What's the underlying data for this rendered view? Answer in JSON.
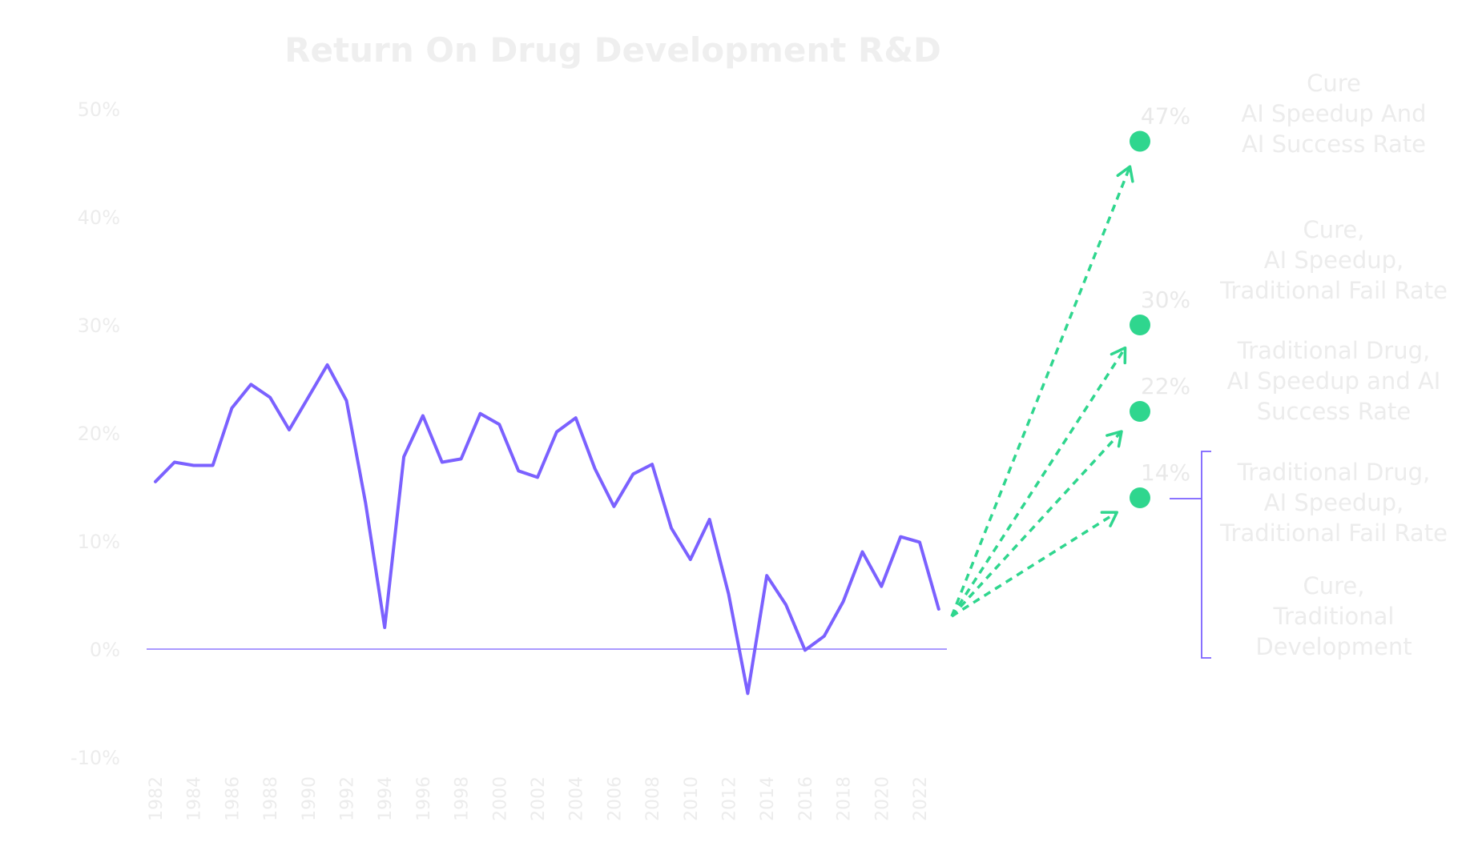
{
  "chart_data": {
    "type": "line",
    "title": "Return On Drug Development R&D",
    "xlabel": "",
    "ylabel": "",
    "ylim": [
      -10,
      50
    ],
    "y_ticks": [
      "50%",
      "40%",
      "30%",
      "20%",
      "10%",
      "0%",
      "-10%"
    ],
    "x_ticks": [
      "1982",
      "1984",
      "1986",
      "1988",
      "1990",
      "1992",
      "1994",
      "1996",
      "1998",
      "2000",
      "2002",
      "2004",
      "2006",
      "2008",
      "2010",
      "2012",
      "2014",
      "2016",
      "2018",
      "2020",
      "2022"
    ],
    "series": [
      {
        "name": "",
        "color": "#7b61ff",
        "x": [
          1982,
          1983,
          1984,
          1985,
          1986,
          1987,
          1988,
          1989,
          1990,
          1991,
          1992,
          1993,
          1994,
          1995,
          1996,
          1997,
          1998,
          1999,
          2000,
          2001,
          2002,
          2003,
          2004,
          2005,
          2006,
          2007,
          2008,
          2009,
          2010,
          2011,
          2012,
          2013,
          2014,
          2015,
          2016,
          2017,
          2018,
          2019,
          2020,
          2021,
          2022,
          2023
        ],
        "values": [
          15.5,
          17.3,
          17.0,
          17.0,
          22.3,
          24.5,
          23.3,
          20.3,
          23.3,
          26.3,
          23.0,
          13.5,
          2.0,
          17.8,
          21.6,
          17.3,
          17.6,
          21.8,
          20.8,
          16.5,
          15.9,
          20.1,
          21.4,
          16.7,
          13.2,
          16.2,
          17.1,
          11.2,
          8.3,
          12.0,
          5.1,
          -4.1,
          6.8,
          4.1,
          -0.1,
          1.2,
          4.4,
          9.0,
          5.8,
          10.4,
          9.9,
          3.7
        ]
      }
    ],
    "baseline": 0,
    "projections": [
      {
        "value": 47,
        "label": "47%",
        "color": "#2fd68e"
      },
      {
        "value": 30,
        "label": "30%",
        "color": "#2fd68e"
      },
      {
        "value": 22,
        "label": "22%",
        "color": "#2fd68e"
      },
      {
        "value": 14,
        "label": "14%",
        "color": "#2fd68e"
      }
    ],
    "scenarios": [
      [
        "Cure",
        "AI Speedup And",
        "AI Success Rate"
      ],
      [
        "Cure,",
        "AI Speedup,",
        "Traditional Fail Rate"
      ],
      [
        "Traditional Drug,",
        "AI Speedup and AI",
        "Success Rate"
      ],
      [
        "Traditional Drug,",
        "AI Speedup,",
        "Traditional Fail Rate"
      ],
      [
        "Cure,",
        "Traditional",
        "Development"
      ]
    ],
    "grid": false,
    "colors": {
      "line": "#7b61ff",
      "projection": "#2fd68e",
      "bracket": "#7b61ff",
      "axis": "#7b61ff"
    }
  }
}
